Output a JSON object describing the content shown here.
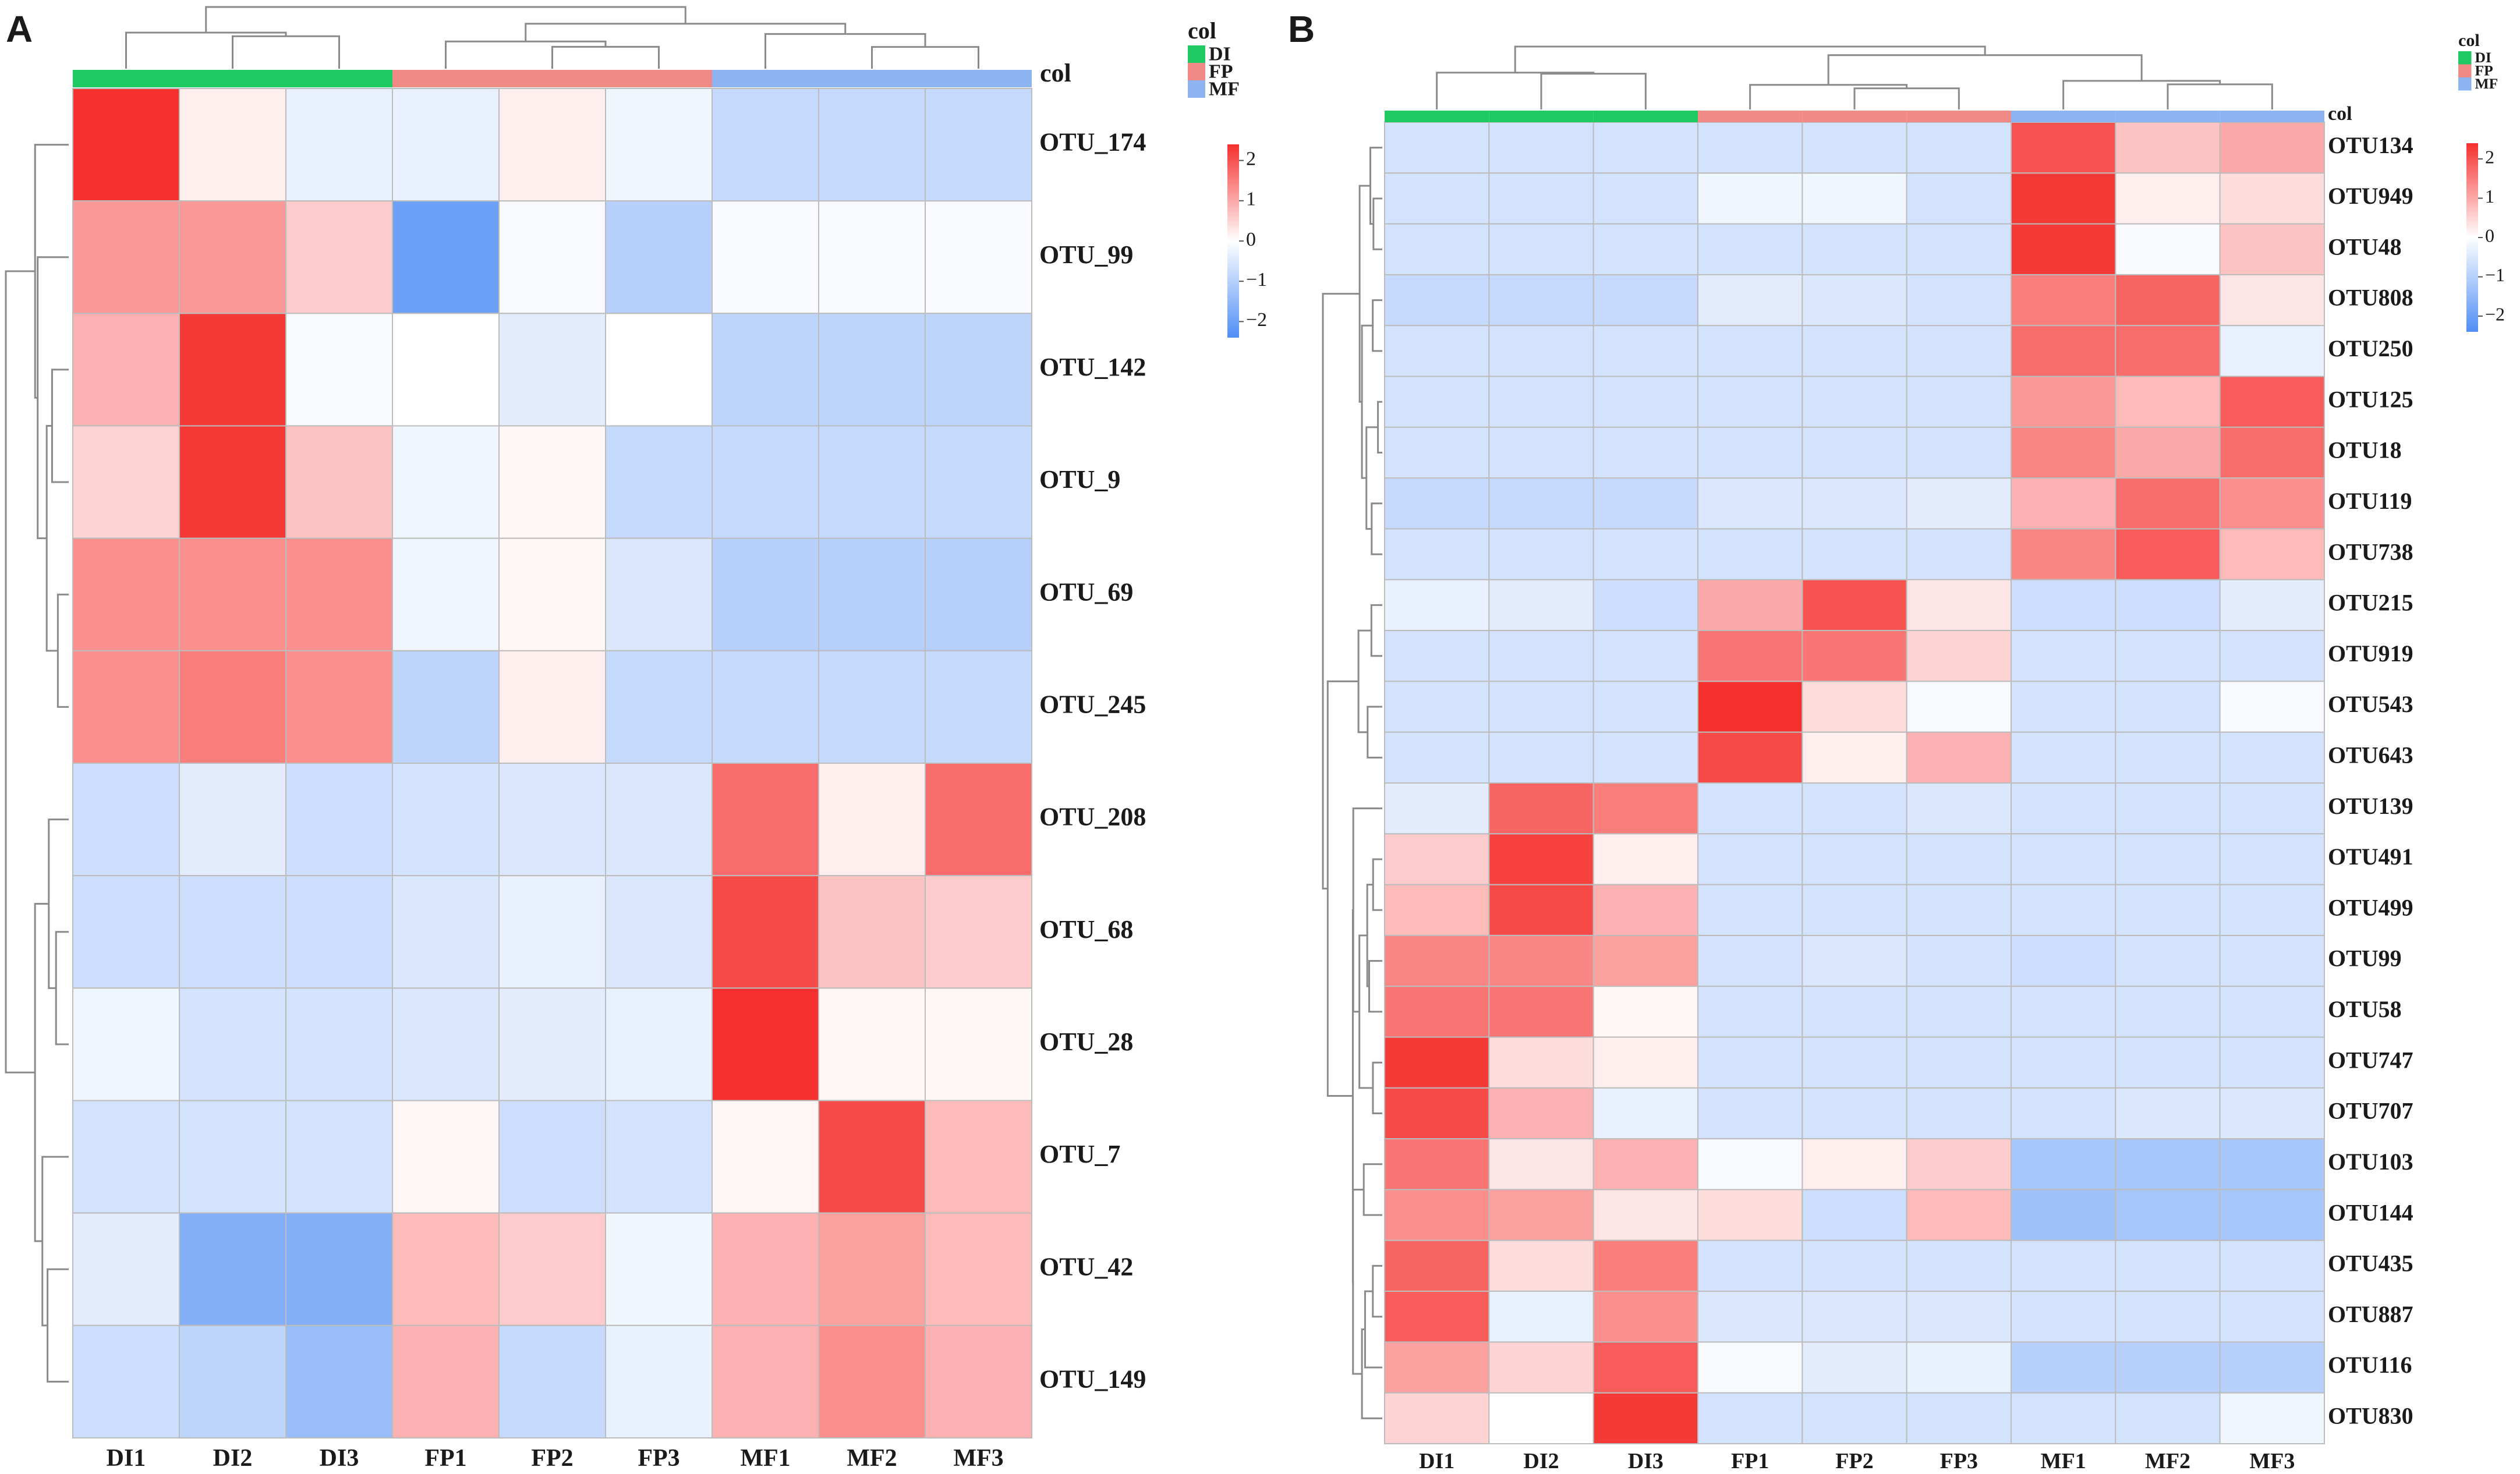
{
  "figure": {
    "colors": {
      "DI": "#1fca63",
      "FP": "#f08a87",
      "MF": "#8db4f1",
      "grid": "#bcbcbc",
      "dendro": "#8a8a8a",
      "low": "#4f8ef5",
      "mid": "#ffffff",
      "high": "#f5302e"
    }
  },
  "chart_data": [
    {
      "type": "heatmap",
      "panel": "A",
      "annotation_label": "col",
      "legend_title": "col",
      "legend_items": [
        "DI",
        "FP",
        "MF"
      ],
      "scale_ticks": [
        "2",
        "1",
        "0",
        "−1",
        "−2"
      ],
      "scale_range": [
        -2.4,
        2.4
      ],
      "columns": [
        "DI1",
        "DI2",
        "DI3",
        "FP1",
        "FP2",
        "FP3",
        "MF1",
        "MF2",
        "MF3"
      ],
      "column_groups": [
        "DI",
        "DI",
        "DI",
        "FP",
        "FP",
        "FP",
        "MF",
        "MF",
        "MF"
      ],
      "rows": [
        "OTU_174",
        "OTU_99",
        "OTU_142",
        "OTU_9",
        "OTU_69",
        "OTU_245",
        "OTU_208",
        "OTU_68",
        "OTU_28",
        "OTU_7",
        "OTU_42",
        "OTU_149"
      ],
      "values": [
        [
          2.4,
          0.2,
          -0.3,
          -0.3,
          0.2,
          -0.2,
          -0.8,
          -0.8,
          -0.8
        ],
        [
          1.2,
          1.2,
          0.6,
          -2.0,
          -0.1,
          -1.0,
          -0.1,
          -0.1,
          -0.1
        ],
        [
          0.9,
          2.3,
          -0.1,
          0.0,
          -0.4,
          0.0,
          -0.9,
          -0.9,
          -0.9
        ],
        [
          0.5,
          2.3,
          0.7,
          -0.2,
          0.1,
          -0.8,
          -0.8,
          -0.8,
          -0.8
        ],
        [
          1.3,
          1.3,
          1.3,
          -0.2,
          0.1,
          -0.5,
          -1.0,
          -1.0,
          -1.0
        ],
        [
          1.3,
          1.5,
          1.3,
          -0.9,
          0.2,
          -0.8,
          -0.8,
          -0.8,
          -0.8
        ],
        [
          -0.7,
          -0.4,
          -0.7,
          -0.6,
          -0.5,
          -0.5,
          1.7,
          0.2,
          1.7
        ],
        [
          -0.7,
          -0.7,
          -0.7,
          -0.5,
          -0.3,
          -0.5,
          2.1,
          0.7,
          0.6
        ],
        [
          -0.2,
          -0.6,
          -0.6,
          -0.5,
          -0.4,
          -0.3,
          2.4,
          0.1,
          0.1
        ],
        [
          -0.6,
          -0.6,
          -0.6,
          0.1,
          -0.7,
          -0.6,
          0.1,
          2.1,
          0.8
        ],
        [
          -0.4,
          -1.7,
          -1.7,
          0.8,
          0.6,
          -0.2,
          0.9,
          1.1,
          0.8
        ],
        [
          -0.7,
          -0.9,
          -1.4,
          0.9,
          -0.8,
          -0.3,
          0.9,
          1.3,
          0.9
        ]
      ]
    },
    {
      "type": "heatmap",
      "panel": "B",
      "annotation_label": "col",
      "legend_title": "col",
      "legend_items": [
        "DI",
        "FP",
        "MF"
      ],
      "scale_ticks": [
        "2",
        "1",
        "0",
        "−1",
        "−2"
      ],
      "scale_range": [
        -2.4,
        2.4
      ],
      "columns": [
        "DI1",
        "DI2",
        "DI3",
        "FP1",
        "FP2",
        "FP3",
        "MF1",
        "MF2",
        "MF3"
      ],
      "column_groups": [
        "DI",
        "DI",
        "DI",
        "FP",
        "FP",
        "FP",
        "MF",
        "MF",
        "MF"
      ],
      "rows": [
        "OTU134",
        "OTU949",
        "OTU48",
        "OTU808",
        "OTU250",
        "OTU125",
        "OTU18",
        "OTU119",
        "OTU738",
        "OTU215",
        "OTU919",
        "OTU543",
        "OTU643",
        "OTU139",
        "OTU491",
        "OTU499",
        "OTU99",
        "OTU58",
        "OTU747",
        "OTU707",
        "OTU103",
        "OTU144",
        "OTU435",
        "OTU887",
        "OTU116",
        "OTU830"
      ],
      "values": [
        [
          -0.6,
          -0.6,
          -0.6,
          -0.6,
          -0.6,
          -0.6,
          2.0,
          0.7,
          1.0
        ],
        [
          -0.6,
          -0.6,
          -0.6,
          -0.2,
          -0.2,
          -0.6,
          2.3,
          0.2,
          0.4
        ],
        [
          -0.6,
          -0.6,
          -0.6,
          -0.6,
          -0.6,
          -0.6,
          2.3,
          -0.1,
          0.7
        ],
        [
          -0.8,
          -0.8,
          -0.8,
          -0.4,
          -0.5,
          -0.6,
          1.5,
          1.8,
          0.3
        ],
        [
          -0.6,
          -0.6,
          -0.6,
          -0.6,
          -0.6,
          -0.6,
          1.7,
          1.7,
          -0.3
        ],
        [
          -0.6,
          -0.6,
          -0.6,
          -0.6,
          -0.6,
          -0.6,
          1.2,
          0.8,
          1.9
        ],
        [
          -0.6,
          -0.6,
          -0.6,
          -0.6,
          -0.6,
          -0.6,
          1.4,
          1.0,
          1.7
        ],
        [
          -0.8,
          -0.8,
          -0.8,
          -0.5,
          -0.5,
          -0.4,
          0.9,
          1.7,
          1.3
        ],
        [
          -0.6,
          -0.6,
          -0.6,
          -0.6,
          -0.6,
          -0.6,
          1.4,
          1.9,
          0.8
        ],
        [
          -0.3,
          -0.4,
          -0.7,
          1.0,
          2.0,
          0.3,
          -0.7,
          -0.7,
          -0.4
        ],
        [
          -0.6,
          -0.6,
          -0.6,
          1.6,
          1.6,
          0.5,
          -0.6,
          -0.6,
          -0.6
        ],
        [
          -0.6,
          -0.6,
          -0.6,
          2.4,
          0.4,
          -0.1,
          -0.6,
          -0.6,
          -0.1
        ],
        [
          -0.6,
          -0.6,
          -0.6,
          2.1,
          0.2,
          0.9,
          -0.6,
          -0.6,
          -0.6
        ],
        [
          -0.4,
          1.8,
          1.5,
          -0.6,
          -0.6,
          -0.5,
          -0.6,
          -0.6,
          -0.6
        ],
        [
          0.6,
          2.2,
          0.2,
          -0.6,
          -0.6,
          -0.6,
          -0.6,
          -0.6,
          -0.6
        ],
        [
          0.8,
          2.1,
          0.9,
          -0.6,
          -0.6,
          -0.6,
          -0.6,
          -0.6,
          -0.6
        ],
        [
          1.4,
          1.4,
          1.1,
          -0.6,
          -0.5,
          -0.6,
          -0.7,
          -0.6,
          -0.6
        ],
        [
          1.6,
          1.6,
          0.1,
          -0.6,
          -0.6,
          -0.6,
          -0.6,
          -0.6,
          -0.6
        ],
        [
          2.3,
          0.4,
          0.2,
          -0.6,
          -0.6,
          -0.6,
          -0.6,
          -0.6,
          -0.6
        ],
        [
          2.1,
          0.9,
          -0.3,
          -0.6,
          -0.6,
          -0.6,
          -0.6,
          -0.5,
          -0.5
        ],
        [
          1.6,
          0.3,
          0.9,
          -0.1,
          0.2,
          0.6,
          -1.2,
          -1.2,
          -1.2
        ],
        [
          1.3,
          1.1,
          0.3,
          0.4,
          -0.7,
          0.8,
          -1.3,
          -1.2,
          -1.2
        ],
        [
          1.8,
          0.4,
          1.5,
          -0.6,
          -0.6,
          -0.6,
          -0.6,
          -0.6,
          -0.6
        ],
        [
          1.9,
          -0.3,
          1.3,
          -0.5,
          -0.5,
          -0.5,
          -0.6,
          -0.6,
          -0.6
        ],
        [
          1.1,
          0.5,
          1.9,
          -0.1,
          -0.4,
          -0.3,
          -1.0,
          -1.0,
          -1.0
        ],
        [
          0.5,
          0.0,
          2.3,
          -0.6,
          -0.6,
          -0.6,
          -0.6,
          -0.6,
          -0.2
        ]
      ]
    }
  ]
}
